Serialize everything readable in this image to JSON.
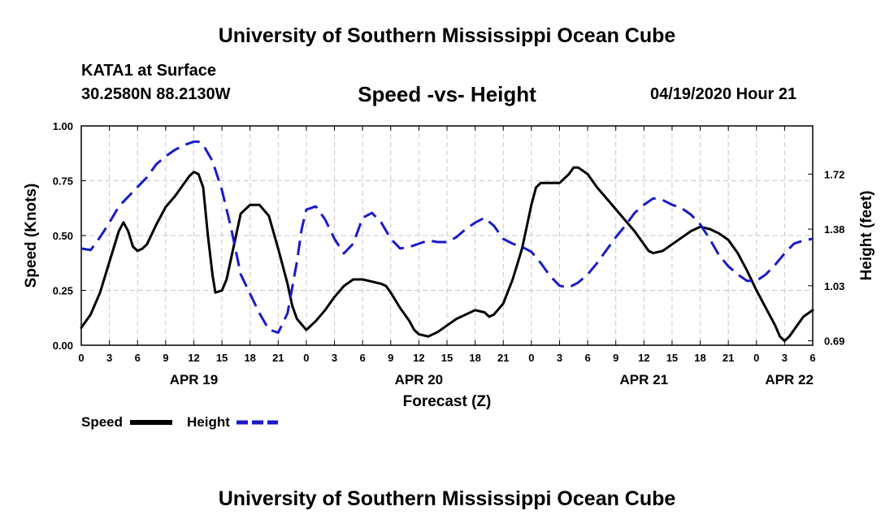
{
  "header": {
    "title": "University of Southern Mississippi Ocean Cube",
    "station": "KATA1 at Surface",
    "coordinates": "30.2580N 88.2130W",
    "subtitle": "Speed -vs- Height",
    "timestamp": "04/19/2020 Hour 21"
  },
  "footer": {
    "title": "University of Southern Mississippi Ocean Cube"
  },
  "colors": {
    "speed": "#000000",
    "height": "#1a1acc",
    "grid": "#c8c8c8"
  },
  "chart_data": {
    "type": "line",
    "xlabel": "Forecast (Z)",
    "ylabel": "Speed (Knots)",
    "y2label": "Height (feet)",
    "xlim": [
      0,
      78
    ],
    "ylim": [
      0,
      1.0
    ],
    "y2lim": [
      0.6625,
      2.0175
    ],
    "x_tick_values": [
      0,
      3,
      6,
      9,
      12,
      15,
      18,
      21,
      24,
      27,
      30,
      33,
      36,
      39,
      42,
      45,
      48,
      51,
      54,
      57,
      60,
      63,
      66,
      69,
      72,
      75,
      78
    ],
    "x_tick_labels": [
      "0",
      "3",
      "6",
      "9",
      "12",
      "15",
      "18",
      "21",
      "0",
      "3",
      "6",
      "9",
      "12",
      "15",
      "18",
      "21",
      "0",
      "3",
      "6",
      "9",
      "12",
      "15",
      "18",
      "21",
      "0",
      "3",
      "6"
    ],
    "date_labels": [
      {
        "x": 12,
        "label": "APR 19"
      },
      {
        "x": 36,
        "label": "APR 20"
      },
      {
        "x": 60,
        "label": "APR 21"
      },
      {
        "x": 75.5,
        "label": "APR 22"
      }
    ],
    "y_ticks": [
      {
        "v": 0.0,
        "label": "0.00"
      },
      {
        "v": 0.25,
        "label": "0.25"
      },
      {
        "v": 0.5,
        "label": "0.50"
      },
      {
        "v": 0.75,
        "label": "0.75"
      },
      {
        "v": 1.0,
        "label": "1.00"
      }
    ],
    "y2_ticks": [
      {
        "v": 0.69,
        "label": "0.69"
      },
      {
        "v": 1.03,
        "label": "1.03"
      },
      {
        "v": 1.38,
        "label": "1.38"
      },
      {
        "v": 1.72,
        "label": "1.72"
      }
    ],
    "grid": true,
    "legend": "bottom-left",
    "series": [
      {
        "name": "Speed",
        "axis": "left",
        "style": "solid",
        "points": [
          [
            0,
            0.08
          ],
          [
            1,
            0.14
          ],
          [
            2,
            0.24
          ],
          [
            3,
            0.38
          ],
          [
            3.5,
            0.45
          ],
          [
            4,
            0.52
          ],
          [
            4.5,
            0.56
          ],
          [
            5,
            0.52
          ],
          [
            5.5,
            0.45
          ],
          [
            6,
            0.43
          ],
          [
            6.5,
            0.44
          ],
          [
            7,
            0.46
          ],
          [
            8,
            0.55
          ],
          [
            9,
            0.63
          ],
          [
            10,
            0.68
          ],
          [
            11,
            0.74
          ],
          [
            11.5,
            0.77
          ],
          [
            12,
            0.79
          ],
          [
            12.5,
            0.78
          ],
          [
            13,
            0.72
          ],
          [
            13.5,
            0.5
          ],
          [
            14,
            0.32
          ],
          [
            14.3,
            0.24
          ],
          [
            15,
            0.25
          ],
          [
            15.5,
            0.3
          ],
          [
            16,
            0.4
          ],
          [
            17,
            0.6
          ],
          [
            18,
            0.64
          ],
          [
            19,
            0.64
          ],
          [
            20,
            0.59
          ],
          [
            21,
            0.44
          ],
          [
            22,
            0.28
          ],
          [
            22.5,
            0.18
          ],
          [
            23,
            0.12
          ],
          [
            24,
            0.07
          ],
          [
            25,
            0.11
          ],
          [
            26,
            0.16
          ],
          [
            27,
            0.22
          ],
          [
            28,
            0.27
          ],
          [
            29,
            0.3
          ],
          [
            30,
            0.3
          ],
          [
            31,
            0.29
          ],
          [
            32,
            0.28
          ],
          [
            32.5,
            0.27
          ],
          [
            33,
            0.24
          ],
          [
            34,
            0.17
          ],
          [
            35,
            0.11
          ],
          [
            35.5,
            0.07
          ],
          [
            36,
            0.05
          ],
          [
            37,
            0.04
          ],
          [
            38,
            0.06
          ],
          [
            39,
            0.09
          ],
          [
            40,
            0.12
          ],
          [
            41,
            0.14
          ],
          [
            42,
            0.16
          ],
          [
            43,
            0.15
          ],
          [
            43.5,
            0.13
          ],
          [
            44,
            0.14
          ],
          [
            45,
            0.19
          ],
          [
            46,
            0.3
          ],
          [
            47,
            0.44
          ],
          [
            47.5,
            0.54
          ],
          [
            48,
            0.64
          ],
          [
            48.5,
            0.72
          ],
          [
            49,
            0.74
          ],
          [
            50,
            0.74
          ],
          [
            51,
            0.74
          ],
          [
            52,
            0.78
          ],
          [
            52.5,
            0.81
          ],
          [
            53,
            0.81
          ],
          [
            54,
            0.78
          ],
          [
            55,
            0.72
          ],
          [
            56,
            0.67
          ],
          [
            57,
            0.62
          ],
          [
            58,
            0.57
          ],
          [
            59,
            0.52
          ],
          [
            60,
            0.46
          ],
          [
            60.5,
            0.43
          ],
          [
            61,
            0.42
          ],
          [
            62,
            0.43
          ],
          [
            63,
            0.46
          ],
          [
            64,
            0.49
          ],
          [
            65,
            0.52
          ],
          [
            66,
            0.54
          ],
          [
            67,
            0.53
          ],
          [
            68,
            0.51
          ],
          [
            69,
            0.48
          ],
          [
            70,
            0.42
          ],
          [
            71,
            0.34
          ],
          [
            72,
            0.25
          ],
          [
            73,
            0.17
          ],
          [
            74,
            0.09
          ],
          [
            74.5,
            0.04
          ],
          [
            75,
            0.02
          ],
          [
            75.5,
            0.04
          ],
          [
            76,
            0.07
          ],
          [
            77,
            0.13
          ],
          [
            78,
            0.16
          ]
        ]
      },
      {
        "name": "Height",
        "axis": "right",
        "style": "dashed",
        "points": [
          [
            0,
            1.26
          ],
          [
            1,
            1.25
          ],
          [
            2,
            1.33
          ],
          [
            3,
            1.42
          ],
          [
            4,
            1.52
          ],
          [
            5,
            1.58
          ],
          [
            6,
            1.64
          ],
          [
            7,
            1.7
          ],
          [
            8,
            1.78
          ],
          [
            9,
            1.83
          ],
          [
            10,
            1.87
          ],
          [
            11,
            1.9
          ],
          [
            12,
            1.92
          ],
          [
            12.5,
            1.92
          ],
          [
            13,
            1.9
          ],
          [
            14,
            1.8
          ],
          [
            15,
            1.62
          ],
          [
            16,
            1.38
          ],
          [
            17,
            1.1
          ],
          [
            18,
            0.98
          ],
          [
            19,
            0.86
          ],
          [
            20,
            0.76
          ],
          [
            21,
            0.74
          ],
          [
            22,
            0.86
          ],
          [
            23,
            1.18
          ],
          [
            23.5,
            1.38
          ],
          [
            24,
            1.5
          ],
          [
            25,
            1.52
          ],
          [
            26,
            1.44
          ],
          [
            27,
            1.32
          ],
          [
            28,
            1.23
          ],
          [
            29,
            1.29
          ],
          [
            30,
            1.45
          ],
          [
            31,
            1.48
          ],
          [
            32,
            1.42
          ],
          [
            33,
            1.32
          ],
          [
            34,
            1.26
          ],
          [
            35,
            1.27
          ],
          [
            36,
            1.29
          ],
          [
            37,
            1.31
          ],
          [
            38,
            1.3
          ],
          [
            39,
            1.3
          ],
          [
            40,
            1.33
          ],
          [
            41,
            1.38
          ],
          [
            42,
            1.42
          ],
          [
            43,
            1.45
          ],
          [
            44,
            1.4
          ],
          [
            45,
            1.32
          ],
          [
            46,
            1.29
          ],
          [
            47,
            1.27
          ],
          [
            48,
            1.24
          ],
          [
            49,
            1.17
          ],
          [
            50,
            1.09
          ],
          [
            51,
            1.03
          ],
          [
            52,
            1.02
          ],
          [
            53,
            1.05
          ],
          [
            54,
            1.1
          ],
          [
            55,
            1.17
          ],
          [
            56,
            1.25
          ],
          [
            57,
            1.33
          ],
          [
            58,
            1.4
          ],
          [
            59,
            1.48
          ],
          [
            60,
            1.53
          ],
          [
            61,
            1.57
          ],
          [
            62,
            1.56
          ],
          [
            63,
            1.53
          ],
          [
            64,
            1.51
          ],
          [
            65,
            1.47
          ],
          [
            66,
            1.41
          ],
          [
            67,
            1.32
          ],
          [
            68,
            1.22
          ],
          [
            69,
            1.15
          ],
          [
            70,
            1.1
          ],
          [
            71,
            1.06
          ],
          [
            72,
            1.06
          ],
          [
            73,
            1.1
          ],
          [
            74,
            1.16
          ],
          [
            75,
            1.23
          ],
          [
            76,
            1.29
          ],
          [
            77,
            1.31
          ],
          [
            78,
            1.32
          ]
        ]
      }
    ]
  }
}
